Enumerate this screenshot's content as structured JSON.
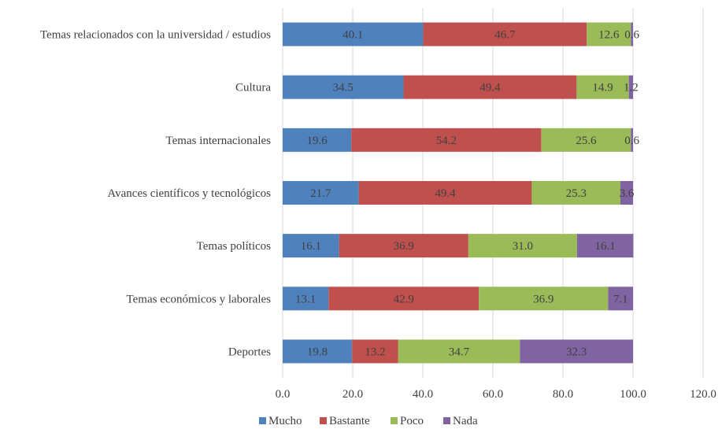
{
  "chart_data": {
    "type": "bar",
    "orientation": "horizontal",
    "stacked": true,
    "categories": [
      "Temas relacionados con la universidad / estudios",
      "Cultura",
      "Temas internacionales",
      "Avances científicos y tecnológicos",
      "Temas políticos",
      "Temas económicos y laborales",
      "Deportes"
    ],
    "series": [
      {
        "name": "Mucho",
        "color": "#4F81BD",
        "values": [
          40.1,
          34.5,
          19.6,
          21.7,
          16.1,
          13.1,
          19.8
        ]
      },
      {
        "name": "Bastante",
        "color": "#C0504D",
        "values": [
          46.7,
          49.4,
          54.2,
          49.4,
          36.9,
          42.9,
          13.2
        ]
      },
      {
        "name": "Poco",
        "color": "#9BBB59",
        "values": [
          12.6,
          14.9,
          25.6,
          25.3,
          31.0,
          36.9,
          34.7
        ]
      },
      {
        "name": "Nada",
        "color": "#8064A2",
        "values": [
          0.6,
          1.2,
          0.6,
          3.6,
          16.1,
          7.1,
          32.3
        ]
      }
    ],
    "data_labels": [
      [
        "40.1",
        "34.5",
        "19.6",
        "21.7",
        "16.1",
        "13.1",
        "19.8"
      ],
      [
        "46.7",
        "49.4",
        "54.2",
        "49.4",
        "36.9",
        "42.9",
        "13.2"
      ],
      [
        "12.6",
        "14.9",
        "25.6",
        "25.3",
        "31.0",
        "36.9",
        "34.7"
      ],
      [
        "0.6",
        "1.2",
        "0.6",
        "3.6",
        "16.1",
        "7.1",
        "32.3"
      ]
    ],
    "xlim": [
      0,
      120
    ],
    "xticks": [
      "0.0",
      "20.0",
      "40.0",
      "60.0",
      "80.0",
      "100.0",
      "120.0"
    ],
    "grid": true,
    "legend_position": "bottom",
    "title": "",
    "xlabel": "",
    "ylabel": ""
  }
}
